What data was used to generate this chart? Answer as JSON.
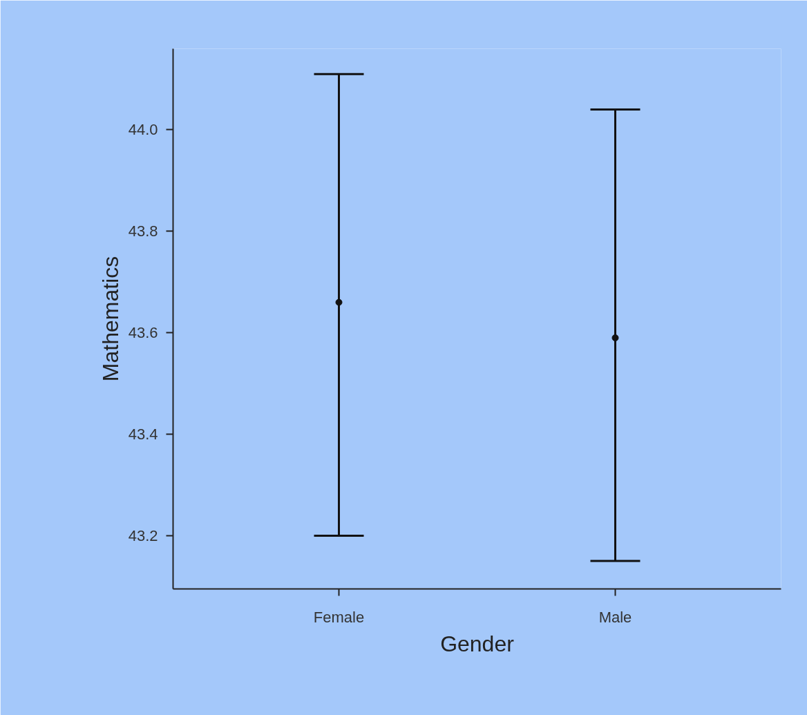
{
  "chart_data": {
    "type": "scatter",
    "xlabel": "Gender",
    "ylabel": "Mathematics",
    "categories": [
      "Female",
      "Male"
    ],
    "series": [
      {
        "color": "#111111",
        "values": [
          43.66,
          43.59
        ],
        "errors": [
          [
            43.2,
            44.11
          ],
          [
            43.15,
            44.04
          ]
        ]
      }
    ],
    "ylim": [
      43.095,
      44.16
    ],
    "yticks": [
      {
        "value": 43.2,
        "label": "43.2"
      },
      {
        "value": 43.4,
        "label": "43.4"
      },
      {
        "value": 43.6,
        "label": "43.6"
      },
      {
        "value": 43.8,
        "label": "43.8"
      },
      {
        "value": 44.0,
        "label": "44.0"
      }
    ],
    "grid": false,
    "marker": "circle"
  }
}
